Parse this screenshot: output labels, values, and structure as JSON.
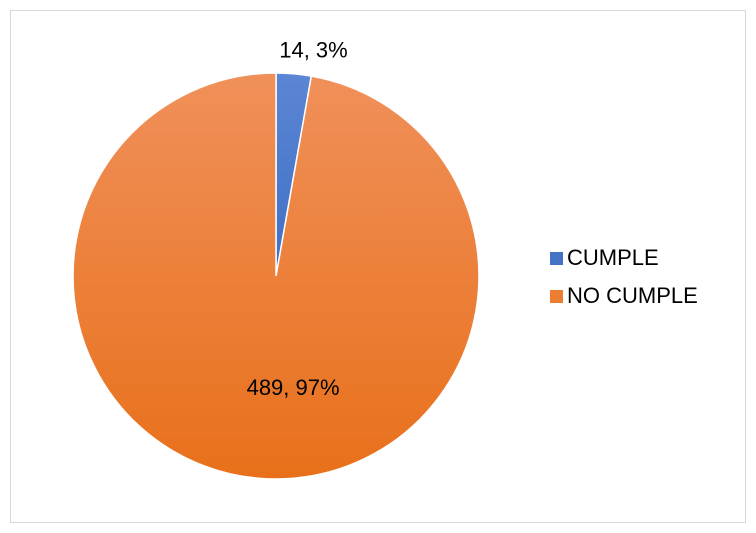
{
  "chart_data": {
    "type": "pie",
    "title": "",
    "categories": [
      "CUMPLE",
      "NO CUMPLE"
    ],
    "values": [
      14,
      489
    ],
    "percent_labels": [
      "3%",
      "97%"
    ],
    "data_labels": [
      "14, 3%",
      "489, 97%"
    ],
    "colors": [
      "#4472C4",
      "#ED7D31"
    ],
    "legend_placement": "right",
    "start_angle_deg": 0,
    "direction": "clockwise"
  },
  "legend": {
    "items": [
      {
        "label": "CUMPLE",
        "color": "#4472C4"
      },
      {
        "label": "NO CUMPLE",
        "color": "#ED7D31"
      }
    ]
  }
}
